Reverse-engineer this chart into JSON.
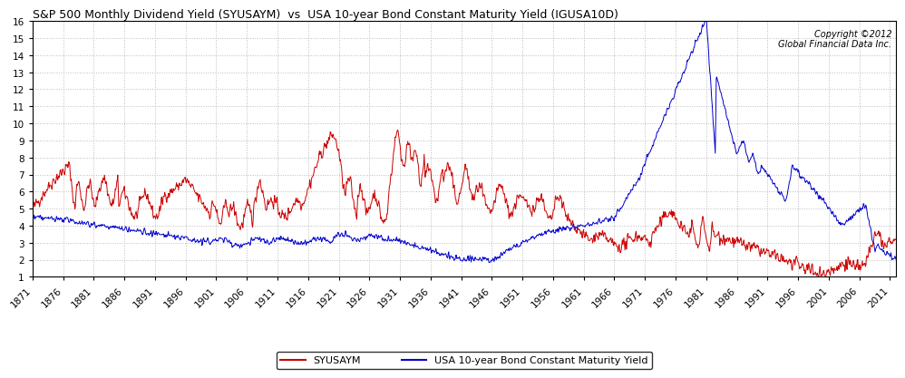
{
  "title": "S&P 500 Monthly Dividend Yield (SYUSAYM)  vs  USA 10-year Bond Constant Maturity Yield (IGUSA10D)",
  "copyright_text": "Copyright ©2012\nGlobal Financial Data Inc.",
  "legend_sp500": "SYUSAYM",
  "legend_bond": "USA 10-year Bond Constant Maturity Yield",
  "sp500_color": "#cc0000",
  "bond_color": "#0000cc",
  "ylim": [
    1,
    16
  ],
  "yticks": [
    1,
    2,
    3,
    4,
    5,
    6,
    7,
    8,
    9,
    10,
    11,
    12,
    13,
    14,
    15,
    16
  ],
  "xtick_years": [
    1871,
    1876,
    1881,
    1886,
    1891,
    1896,
    1901,
    1906,
    1911,
    1916,
    1921,
    1926,
    1931,
    1936,
    1941,
    1946,
    1951,
    1956,
    1961,
    1966,
    1971,
    1976,
    1981,
    1986,
    1991,
    1996,
    2001,
    2006,
    2011
  ],
  "background_color": "#ffffff",
  "grid_color": "#aaaaaa",
  "title_fontsize": 9,
  "tick_fontsize": 7.5
}
